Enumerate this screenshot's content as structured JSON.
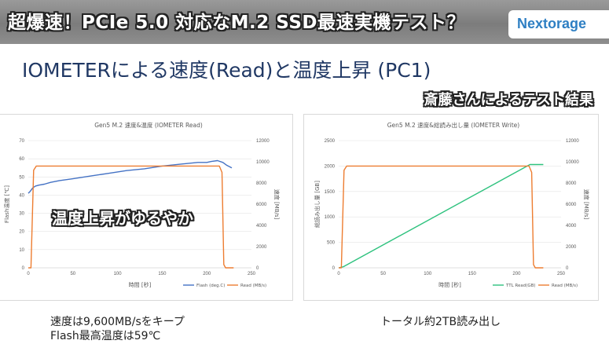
{
  "header": {
    "title": "超爆速！PCIe 5.0 対応なM.2 SSD最速実機テスト？",
    "brand": "Nextorage"
  },
  "slide": {
    "title": "IOMETERによる速度(Read)と温度上昇 (PC1)",
    "caption": "斎藤さんによるテスト結果",
    "overlay": "温度上昇がゆるやか",
    "note_left": [
      "速度は9,600MB/sをキープ",
      "Flash最高温度は59℃"
    ],
    "note_right": "トータル約2TB読み出し"
  },
  "colors": {
    "blue": "#4472c4",
    "orange": "#ed7d31",
    "green": "#2ec27e"
  },
  "chart_data": [
    {
      "type": "line",
      "title": "Gen5 M.2 速度&温度 (IOMETER Read)",
      "xlabel": "時間 [秒]",
      "ylabel": "Flash温度 [℃]",
      "y2label": "速度 [MB/s]",
      "xlim": [
        0,
        250
      ],
      "ylim": [
        0,
        70
      ],
      "y2lim": [
        0,
        12000
      ],
      "x_ticks": [
        "0",
        "50",
        "100",
        "150",
        "200",
        "250"
      ],
      "y_ticks": [
        "0",
        "10",
        "20",
        "30",
        "40",
        "50",
        "60",
        "70"
      ],
      "y2_ticks": [
        "0",
        "2000",
        "4000",
        "6000",
        "8000",
        "10000",
        "12000"
      ],
      "legend_position": "bottom-right",
      "series": [
        {
          "name": "Flash (deg.C)",
          "axis": "left",
          "color": "#4472c4",
          "x": [
            0,
            2,
            5,
            8,
            12,
            18,
            25,
            35,
            50,
            70,
            90,
            110,
            130,
            150,
            170,
            180,
            190,
            200,
            205,
            212,
            218,
            222,
            228
          ],
          "y": [
            41,
            42,
            44,
            45,
            45.5,
            46,
            47,
            48,
            49,
            50.5,
            52,
            53.5,
            54.5,
            56,
            57,
            57.5,
            58,
            58,
            58.5,
            59,
            58,
            56.5,
            55
          ]
        },
        {
          "name": "Read (MB/s)",
          "axis": "right",
          "color": "#ed7d31",
          "x": [
            0,
            3,
            6,
            9,
            50,
            100,
            150,
            200,
            214,
            217,
            219,
            221,
            226,
            230
          ],
          "y": [
            0,
            0,
            9200,
            9600,
            9600,
            9600,
            9600,
            9600,
            9600,
            9000,
            300,
            0,
            0,
            0
          ]
        }
      ]
    },
    {
      "type": "line",
      "title": "Gen5 M.2 速度&総読み出し量 (IOMETER Write)",
      "xlabel": "時間 [秒]",
      "ylabel": "総読み出し量 [GB]",
      "y2label": "速度 [MB/s]",
      "xlim": [
        0,
        250
      ],
      "ylim": [
        0,
        2500
      ],
      "y2lim": [
        0,
        12000
      ],
      "x_ticks": [
        "0",
        "50",
        "100",
        "150",
        "200",
        "250"
      ],
      "y_ticks": [
        "0",
        "500",
        "1000",
        "1500",
        "2000",
        "2500"
      ],
      "y2_ticks": [
        "0",
        "2000",
        "4000",
        "6000",
        "8000",
        "10000",
        "12000"
      ],
      "legend_position": "bottom-right",
      "series": [
        {
          "name": "TTL Read(GB)",
          "axis": "left",
          "color": "#2ec27e",
          "x": [
            0,
            5,
            215,
            230
          ],
          "y": [
            0,
            20,
            2030,
            2030
          ]
        },
        {
          "name": "Read (MB/s)",
          "axis": "right",
          "color": "#ed7d31",
          "x": [
            0,
            3,
            6,
            9,
            50,
            100,
            150,
            200,
            214,
            217,
            219,
            221,
            226,
            230
          ],
          "y": [
            0,
            0,
            9200,
            9600,
            9600,
            9600,
            9600,
            9600,
            9600,
            9000,
            300,
            0,
            0,
            0
          ]
        }
      ]
    }
  ]
}
